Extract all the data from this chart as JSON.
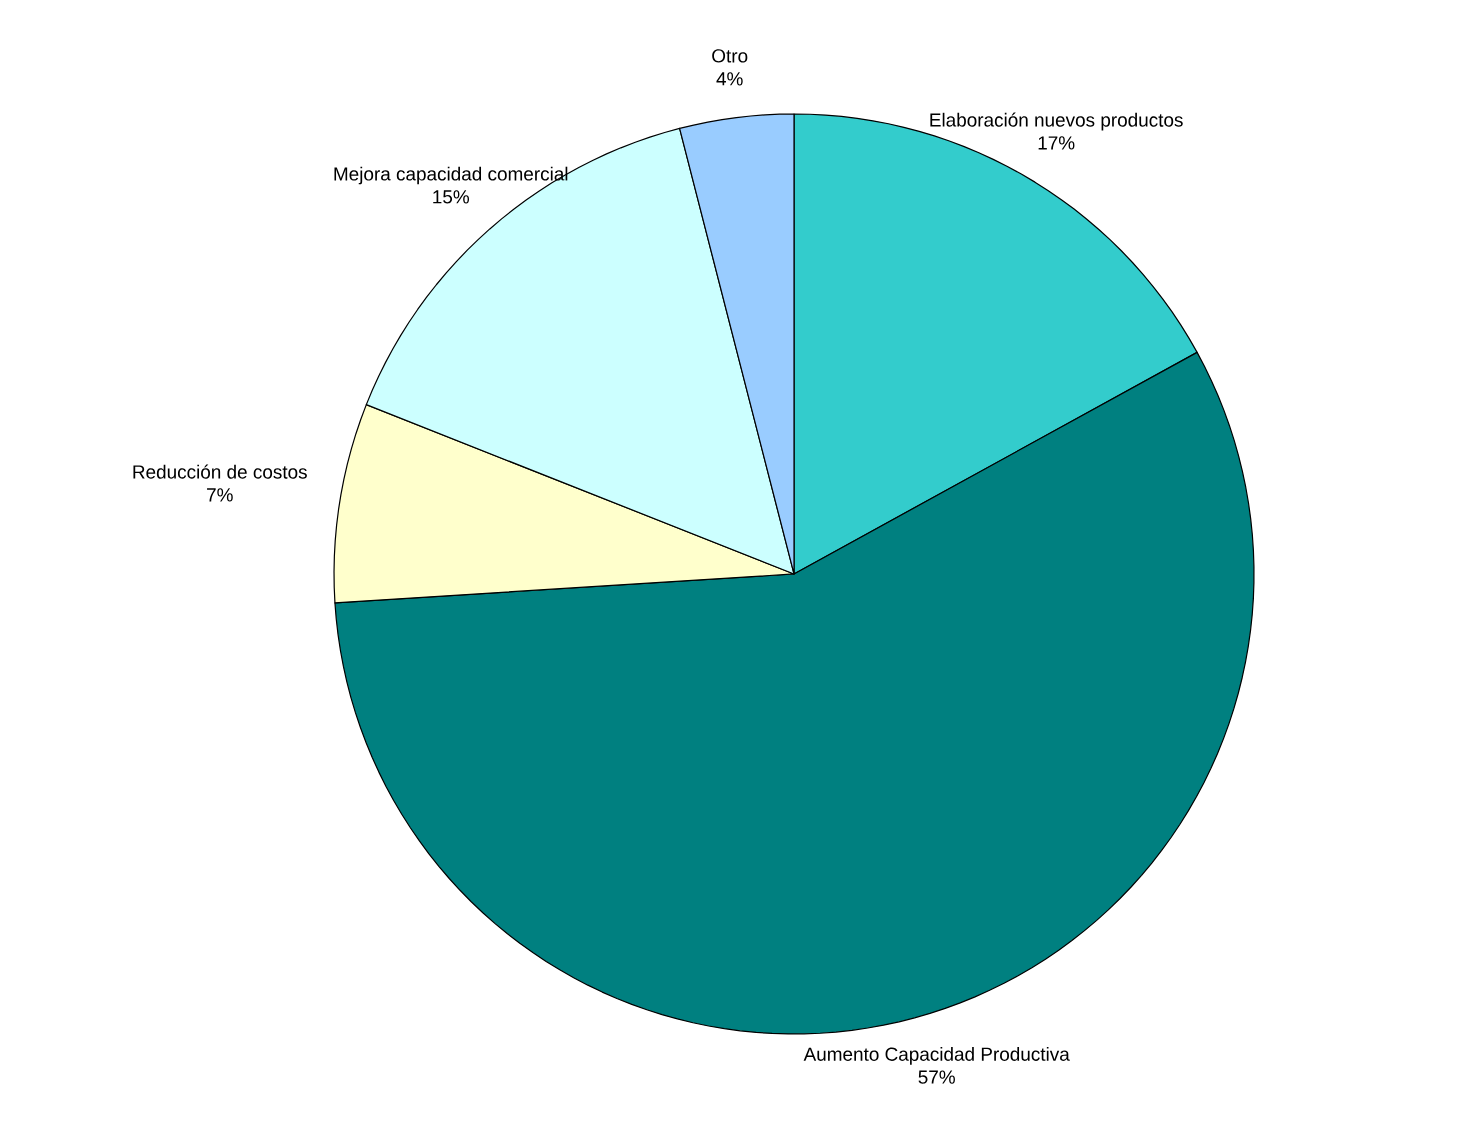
{
  "chart_data": {
    "type": "pie",
    "categories": [
      "Elaboración nuevos productos",
      "Aumento Capacidad Productiva",
      "Reducción de costos",
      "Mejora capacidad comercial",
      "Otro"
    ],
    "values": [
      17,
      57,
      7,
      15,
      4
    ],
    "value_labels": [
      "17%",
      "57%",
      "7%",
      "15%",
      "4%"
    ],
    "colors": [
      "#33cccc",
      "#008080",
      "#ffffcc",
      "#ccffff",
      "#99ccff"
    ]
  }
}
